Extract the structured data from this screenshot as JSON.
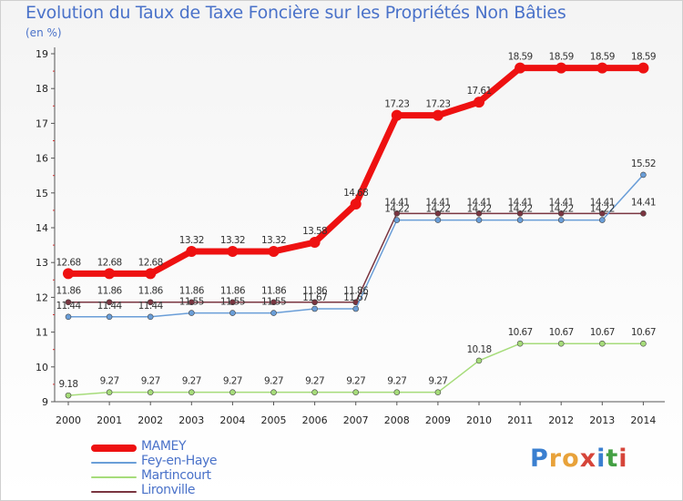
{
  "title": "Evolution du Taux de Taxe Foncière sur les Propriétés Non Bâties",
  "subtitle": "(en %)",
  "logo": {
    "text": "Proxiti",
    "colors": [
      "#3a7fd0",
      "#e8a23a",
      "#e8a23a",
      "#d6453a",
      "#3a7fd0",
      "#44a044",
      "#d6453a"
    ]
  },
  "chart_data": {
    "type": "line",
    "title": "Evolution du Taux de Taxe Foncière sur les Propriétés Non Bâties",
    "ylabel": "(en %)",
    "xlabel": "",
    "categories": [
      "2000",
      "2001",
      "2002",
      "2003",
      "2004",
      "2005",
      "2006",
      "2007",
      "2008",
      "2009",
      "2010",
      "2011",
      "2012",
      "2013",
      "2014"
    ],
    "ylim": [
      9,
      19
    ],
    "yticks": [
      "9",
      "10",
      "11",
      "12",
      "13",
      "14",
      "15",
      "16",
      "17",
      "18",
      "19"
    ],
    "grid": false,
    "series": [
      {
        "name": "MAMEY",
        "color": "#ee1111",
        "emphasis": true,
        "values": [
          12.68,
          12.68,
          12.68,
          13.32,
          13.32,
          13.32,
          13.58,
          14.68,
          17.23,
          17.23,
          17.61,
          18.59,
          18.59,
          18.59,
          18.59
        ],
        "labels": [
          "12.68",
          "12.68",
          "12.68",
          "13.32",
          "13.32",
          "13.32",
          "13.58",
          "14.68",
          "17.23",
          "17.23",
          "17.61",
          "18.59",
          "18.59",
          "18.59",
          "18.59"
        ]
      },
      {
        "name": "Fey-en-Haye",
        "color": "#6a9ed8",
        "values": [
          11.44,
          11.44,
          11.44,
          11.55,
          11.55,
          11.55,
          11.67,
          11.67,
          14.22,
          14.22,
          14.22,
          14.22,
          14.22,
          14.22,
          15.52
        ],
        "labels": [
          "11.44",
          "11.44",
          "11.44",
          "11.55",
          "11.55",
          "11.55",
          "11.67",
          "11.67",
          "14.22",
          "14.22",
          "14.22",
          "14.22",
          "14.22",
          "14.22",
          "15.52"
        ]
      },
      {
        "name": "Martincourt",
        "color": "#a6dc7a",
        "values": [
          9.18,
          9.27,
          9.27,
          9.27,
          9.27,
          9.27,
          9.27,
          9.27,
          9.27,
          9.27,
          10.18,
          10.67,
          10.67,
          10.67,
          10.67
        ],
        "labels": [
          "9.18",
          "9.27",
          "9.27",
          "9.27",
          "9.27",
          "9.27",
          "9.27",
          "9.27",
          "9.27",
          "9.27",
          "10.18",
          "10.67",
          "10.67",
          "10.67",
          "10.67"
        ]
      },
      {
        "name": "Lironville",
        "color": "#7a3540",
        "values": [
          11.86,
          11.86,
          11.86,
          11.86,
          11.86,
          11.86,
          11.86,
          11.86,
          14.41,
          14.41,
          14.41,
          14.41,
          14.41,
          14.41,
          14.41
        ],
        "labels": [
          "11.86",
          "11.86",
          "11.86",
          "11.86",
          "11.86",
          "11.86",
          "11.86",
          "11.86",
          "14.41",
          "14.41",
          "14.41",
          "14.41",
          "14.41",
          "14.41",
          "14.41"
        ]
      }
    ]
  }
}
